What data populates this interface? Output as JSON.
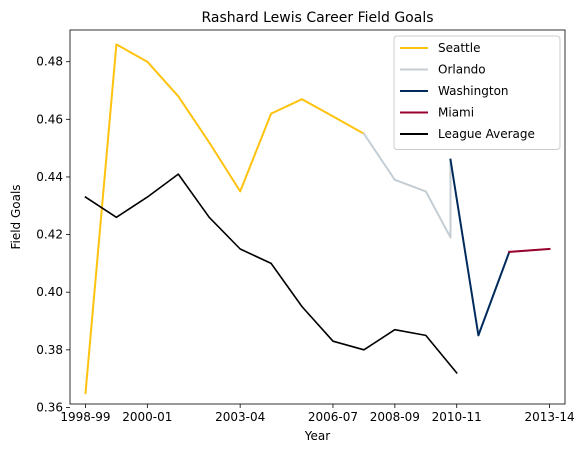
{
  "chart_data": {
    "type": "line",
    "title": "Rashard Lewis Career Field Goals",
    "xlabel": "Year",
    "ylabel": "Field Goals",
    "x_tick_labels": [
      "1998-99",
      "2000-01",
      "2003-04",
      "2006-07",
      "2008-09",
      "2010-11",
      "2013-14"
    ],
    "x_tick_positions": [
      0,
      2,
      5,
      8,
      10,
      12,
      15
    ],
    "xlim": [
      -0.5,
      15.5
    ],
    "ylim": [
      0.3612,
      0.491
    ],
    "y_ticks": [
      0.36,
      0.38,
      0.4,
      0.42,
      0.44,
      0.46,
      0.48
    ],
    "y_tick_labels": [
      "0.36",
      "0.38",
      "0.40",
      "0.42",
      "0.44",
      "0.46",
      "0.48"
    ],
    "grid": false,
    "legend_position": "top-right",
    "series": [
      {
        "name": "Seattle",
        "color": "#FFC20E",
        "x": [
          0,
          1,
          2,
          3,
          4,
          5,
          6,
          7,
          8,
          9
        ],
        "y": [
          0.365,
          0.486,
          0.48,
          0.468,
          0.452,
          0.435,
          0.462,
          0.467,
          0.461,
          0.455
        ]
      },
      {
        "name": "Orlando",
        "color": "#C4CED4",
        "x": [
          9,
          10,
          11,
          11.8,
          11.8
        ],
        "y": [
          0.455,
          0.439,
          0.435,
          0.419,
          0.446
        ]
      },
      {
        "name": "Washington",
        "color": "#002B5C",
        "x": [
          11.8,
          12.7,
          13.7
        ],
        "y": [
          0.446,
          0.385,
          0.414
        ]
      },
      {
        "name": "Miami",
        "color": "#98002E",
        "x": [
          13.7,
          15
        ],
        "y": [
          0.414,
          0.415
        ]
      },
      {
        "name": "League Average",
        "color": "#000000",
        "x": [
          0,
          1,
          2,
          3,
          4,
          5,
          6,
          7,
          8,
          9,
          10,
          11,
          12
        ],
        "y": [
          0.433,
          0.426,
          0.433,
          0.441,
          0.426,
          0.415,
          0.41,
          0.395,
          0.383,
          0.38,
          0.387,
          0.385,
          0.372
        ]
      }
    ]
  }
}
